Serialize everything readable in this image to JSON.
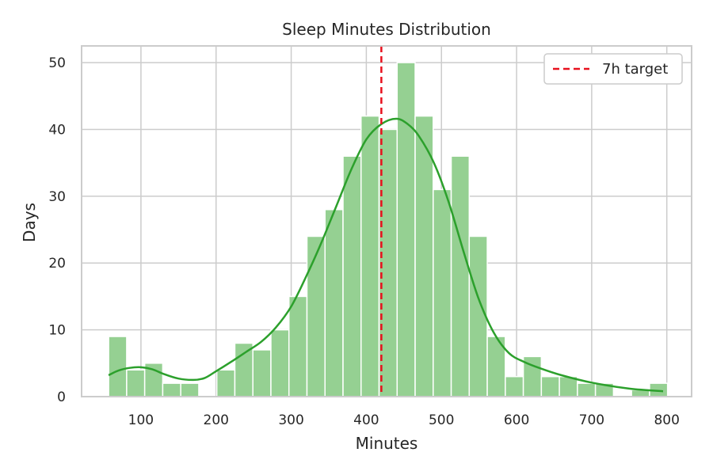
{
  "chart_data": {
    "type": "bar",
    "title": "Sleep Minutes Distribution",
    "xlabel": "Minutes",
    "ylabel": "Days",
    "xlim": [
      21,
      833
    ],
    "ylim": [
      0,
      52.5
    ],
    "xticks": [
      100,
      200,
      300,
      400,
      500,
      600,
      700,
      800
    ],
    "yticks": [
      0,
      10,
      20,
      30,
      40,
      50
    ],
    "grid": true,
    "bin_width": 24,
    "bins": [
      {
        "x0": 57,
        "count": 9
      },
      {
        "x0": 81,
        "count": 4
      },
      {
        "x0": 105,
        "count": 5
      },
      {
        "x0": 129,
        "count": 2
      },
      {
        "x0": 153,
        "count": 2
      },
      {
        "x0": 177,
        "count": 0
      },
      {
        "x0": 201,
        "count": 4
      },
      {
        "x0": 225,
        "count": 8
      },
      {
        "x0": 249,
        "count": 7
      },
      {
        "x0": 273,
        "count": 10
      },
      {
        "x0": 297,
        "count": 15
      },
      {
        "x0": 321,
        "count": 24
      },
      {
        "x0": 345,
        "count": 28
      },
      {
        "x0": 369,
        "count": 36
      },
      {
        "x0": 393,
        "count": 42
      },
      {
        "x0": 417,
        "count": 40
      },
      {
        "x0": 441,
        "count": 50
      },
      {
        "x0": 465,
        "count": 42
      },
      {
        "x0": 489,
        "count": 31
      },
      {
        "x0": 513,
        "count": 36
      },
      {
        "x0": 537,
        "count": 24
      },
      {
        "x0": 561,
        "count": 9
      },
      {
        "x0": 585,
        "count": 3
      },
      {
        "x0": 609,
        "count": 6
      },
      {
        "x0": 633,
        "count": 3
      },
      {
        "x0": 657,
        "count": 3
      },
      {
        "x0": 681,
        "count": 2
      },
      {
        "x0": 705,
        "count": 2
      },
      {
        "x0": 729,
        "count": 0
      },
      {
        "x0": 753,
        "count": 1
      },
      {
        "x0": 777,
        "count": 2
      }
    ],
    "kde": {
      "x": [
        57,
        70,
        85,
        100,
        115,
        130,
        150,
        170,
        185,
        200,
        220,
        240,
        260,
        280,
        300,
        320,
        340,
        360,
        380,
        400,
        420,
        440,
        455,
        470,
        490,
        510,
        530,
        550,
        570,
        590,
        610,
        630,
        660,
        700,
        750,
        795
      ],
      "y": [
        3.2,
        3.9,
        4.3,
        4.4,
        4.1,
        3.4,
        2.7,
        2.5,
        2.8,
        3.8,
        5.2,
        6.7,
        8.2,
        10.4,
        13.5,
        18,
        23,
        28.5,
        34,
        38.5,
        40.8,
        41.6,
        40.8,
        39,
        35,
        29,
        21.5,
        14.5,
        9.5,
        6.5,
        5.2,
        4.3,
        3.2,
        2.1,
        1.2,
        0.8
      ]
    },
    "target_line": {
      "x": 420,
      "label": "7h target"
    },
    "legend_position": "upper right",
    "colors": {
      "bar_fill": "#95d092",
      "bar_edge": "#ffffff",
      "kde_line": "#2ca02c",
      "target_line": "#e8111e",
      "grid": "#cccccc",
      "frame": "#cccccc",
      "text": "#262626"
    }
  }
}
